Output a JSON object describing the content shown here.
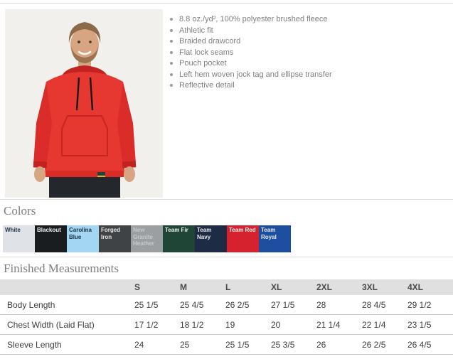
{
  "product": {
    "features": [
      "8.8 oz./yd², 100% polyester brushed fleece",
      "Athletic fit",
      "Braided drawcord",
      "Flat lock seams",
      "Pouch pocket",
      "Left hem woven jock tag and ellipse transfer",
      "Reflective detail"
    ]
  },
  "colors_section": {
    "title": "Colors",
    "swatches": [
      {
        "name": "White",
        "bg": "#dfe3e7",
        "fg": "#1d3049"
      },
      {
        "name": "Blackout",
        "bg": "#1a1d20",
        "fg": "#f2f2f2"
      },
      {
        "name": "Carolina Blue",
        "bg": "#a3d7f1",
        "fg": "#1d3049"
      },
      {
        "name": "Forged Iron",
        "bg": "#404346",
        "fg": "#e8e8e8"
      },
      {
        "name": "New Granite Heather",
        "bg": "#9c9fa2",
        "fg": "#c6c9cc"
      },
      {
        "name": "Team Fir",
        "bg": "#1e4536",
        "fg": "#f2f2f2"
      },
      {
        "name": "Team Navy",
        "bg": "#1d2b44",
        "fg": "#e8eaed"
      },
      {
        "name": "Team Red",
        "bg": "#d6212e",
        "fg": "#f5f5f5"
      },
      {
        "name": "Team Royal",
        "bg": "#1d4fa1",
        "fg": "#e8eaed"
      }
    ]
  },
  "measurements": {
    "title": "Finished Measurements",
    "columns": [
      "S",
      "M",
      "L",
      "XL",
      "2XL",
      "3XL",
      "4XL"
    ],
    "rows": [
      {
        "label": "Body Length",
        "values": [
          "25 1/5",
          "25 4/5",
          "26 2/5",
          "27 1/5",
          "28",
          "28 4/5",
          "29 1/2"
        ]
      },
      {
        "label": "Chest Width (Laid Flat)",
        "values": [
          "17 1/2",
          "18 1/2",
          "19",
          "20",
          "21 1/4",
          "22 1/4",
          "23 1/5"
        ]
      },
      {
        "label": "Sleeve Length",
        "values": [
          "24",
          "25",
          "25 1/5",
          "25 3/5",
          "26",
          "26 2/5",
          "26 4/5"
        ]
      }
    ]
  }
}
